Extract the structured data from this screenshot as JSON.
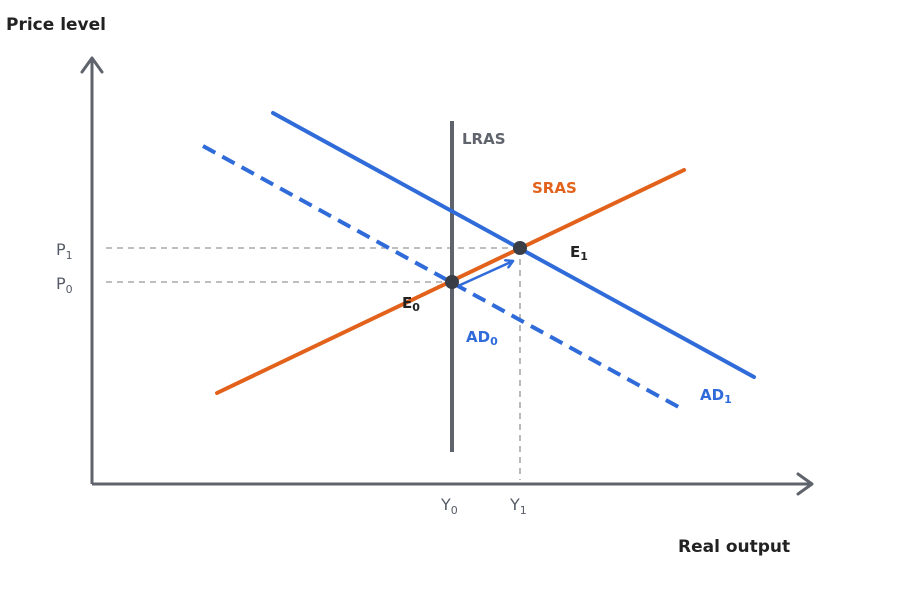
{
  "axes": {
    "y_title": "Price level",
    "x_title": "Real output"
  },
  "ticks": {
    "p1": {
      "main": "P",
      "sub": "1"
    },
    "p0": {
      "main": "P",
      "sub": "0"
    },
    "y0": {
      "main": "Y",
      "sub": "0"
    },
    "y1": {
      "main": "Y",
      "sub": "1"
    }
  },
  "curves": {
    "lras": {
      "label": "LRAS",
      "color": "#5f636b"
    },
    "sras": {
      "label": "SRAS",
      "color": "#e2621b"
    },
    "ad0": {
      "main": "AD",
      "sub": "0",
      "color": "#2f6bd9",
      "style": "dashed"
    },
    "ad1": {
      "main": "AD",
      "sub": "1",
      "color": "#2f6bd9",
      "style": "solid"
    }
  },
  "points": {
    "e0": {
      "main": "E",
      "sub": "0"
    },
    "e1": {
      "main": "E",
      "sub": "1"
    }
  },
  "colors": {
    "axis": "#5f636b",
    "guide": "#a8a8a8",
    "point": "#3a3f47",
    "arrow": "#2f6bd9"
  }
}
